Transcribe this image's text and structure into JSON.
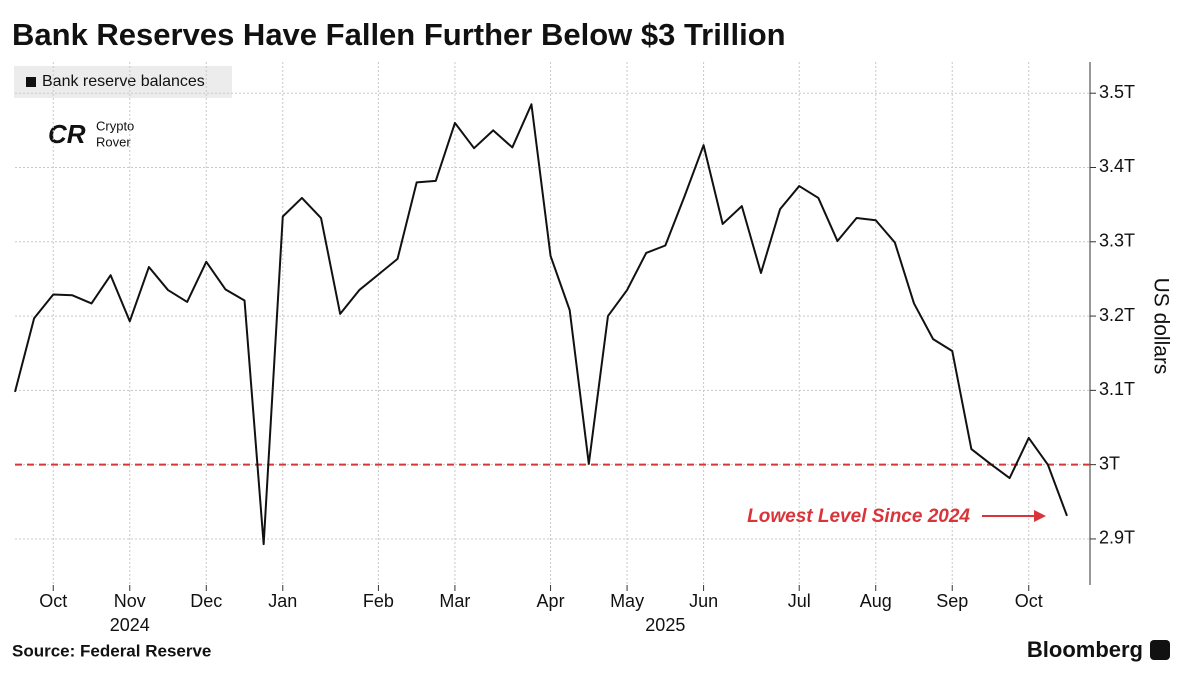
{
  "chart_data": {
    "type": "line",
    "title": "Bank Reserves Have Fallen Further Below $3 Trillion",
    "y_axis_label": "US dollars",
    "source": "Source: Federal Reserve",
    "brand": "Bloomberg",
    "watermark": [
      "Crypto",
      "Rover"
    ],
    "annotation": "Lowest Level Since 2024",
    "year_labels": [
      "2024",
      "2025"
    ],
    "categories": [
      null,
      null,
      "Oct",
      null,
      null,
      null,
      "Nov",
      null,
      null,
      null,
      "Dec",
      null,
      null,
      null,
      "Jan",
      null,
      null,
      null,
      null,
      "Feb",
      null,
      null,
      null,
      "Mar",
      null,
      null,
      null,
      null,
      "Apr",
      null,
      null,
      null,
      "May",
      null,
      null,
      null,
      "Jun",
      null,
      null,
      null,
      null,
      "Jul",
      null,
      null,
      null,
      "Aug",
      null,
      null,
      null,
      "Sep",
      null,
      null,
      null,
      "Oct",
      null,
      null
    ],
    "series": [
      {
        "name": "Bank reserve balances",
        "color": "#111111",
        "values": [
          3.098,
          3.197,
          3.229,
          3.228,
          3.217,
          3.255,
          3.193,
          3.266,
          3.235,
          3.219,
          3.273,
          3.236,
          3.221,
          2.893,
          3.334,
          3.359,
          3.332,
          3.203,
          3.235,
          3.256,
          3.277,
          3.38,
          3.382,
          3.46,
          3.426,
          3.45,
          3.427,
          3.485,
          3.281,
          3.208,
          3.001,
          3.2,
          3.235,
          3.285,
          3.295,
          3.361,
          3.43,
          3.324,
          3.348,
          3.258,
          3.344,
          3.375,
          3.359,
          3.301,
          3.332,
          3.329,
          3.299,
          3.217,
          3.169,
          3.153,
          3.021,
          3.001,
          2.982,
          3.036,
          3.0,
          2.931
        ]
      }
    ],
    "hline": {
      "value": 3,
      "color": "#d9343a"
    },
    "ylim": [
      2.838,
      3.542
    ],
    "yticks": [
      {
        "value": 2.9,
        "label": "2.9T"
      },
      {
        "value": 3,
        "label": "3T"
      },
      {
        "value": 3.1,
        "label": "3.1T"
      },
      {
        "value": 3.2,
        "label": "3.2T"
      },
      {
        "value": 3.3,
        "label": "3.3T"
      },
      {
        "value": 3.4,
        "label": "3.4T"
      },
      {
        "value": 3.5,
        "label": "3.5T"
      }
    ],
    "grid": true
  }
}
